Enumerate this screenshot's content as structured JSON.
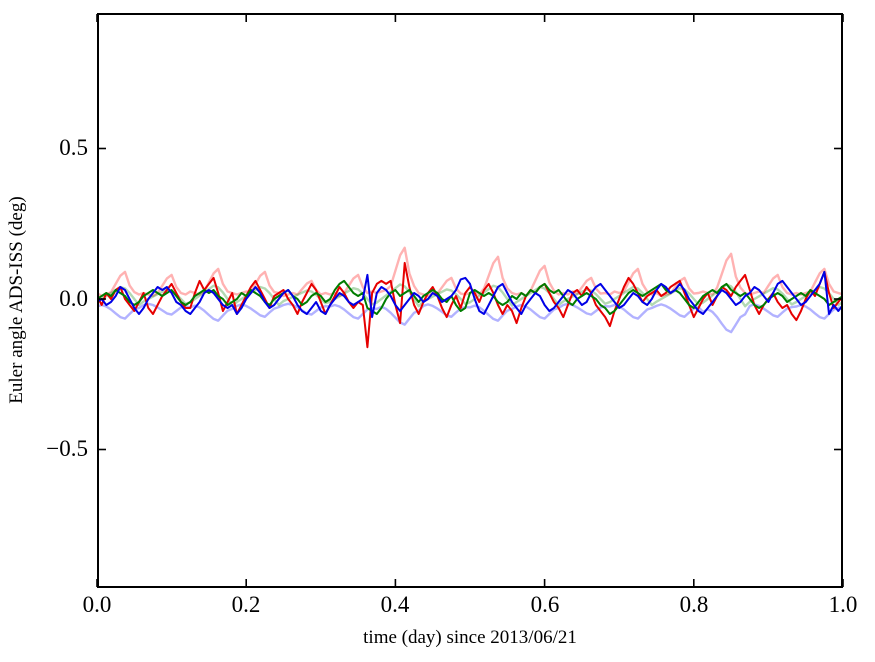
{
  "chart_data": {
    "type": "line",
    "title": "",
    "xlabel": "time (day) since 2013/06/21",
    "ylabel": "Euler angle ADS-ISS (deg)",
    "xlim": [
      0.0,
      1.0
    ],
    "ylim": [
      -0.96,
      0.95
    ],
    "grid": false,
    "legend": "none",
    "axis_color": "#000000",
    "background_color": "#ffffff",
    "x_ticks": [
      "0.0",
      "0.2",
      "0.4",
      "0.6",
      "0.8",
      "1.0"
    ],
    "x_tick_values": [
      0.0,
      0.2,
      0.4,
      0.6,
      0.8,
      1.0
    ],
    "y_ticks": [
      "0.5",
      "0.0",
      "−0.5"
    ],
    "y_tick_values": [
      0.5,
      0.0,
      -0.5
    ],
    "x_start": 0,
    "x_step": 0.00625,
    "series": [
      {
        "name": "red-faint-line",
        "color": "rgba(255,0,0,0.30)",
        "width": 2.4,
        "values": [
          0.02,
          0.01,
          0.015,
          0.023,
          0.05,
          0.077,
          0.09,
          0.045,
          0.023,
          0.015,
          0.02,
          0.015,
          0.01,
          0.02,
          0.044,
          0.068,
          0.08,
          0.04,
          0.02,
          0.015,
          0.025,
          0.02,
          0.015,
          0.025,
          0.055,
          0.085,
          0.1,
          0.05,
          0.025,
          0.02,
          0.015,
          0.02,
          0.025,
          0.023,
          0.05,
          0.077,
          0.09,
          0.045,
          0.023,
          0.02,
          0.01,
          0.015,
          0.02,
          0.015,
          0.033,
          0.051,
          0.06,
          0.03,
          0.015,
          0.02,
          0.015,
          0.02,
          0.01,
          0.02,
          0.044,
          0.068,
          0.08,
          0.04,
          0.02,
          0.025,
          0.02,
          0.025,
          0.03,
          0.043,
          0.094,
          0.145,
          0.17,
          0.085,
          0.043,
          0.02,
          0.015,
          0.01,
          0.02,
          0.018,
          0.039,
          0.06,
          0.07,
          0.035,
          0.018,
          0.015,
          0.02,
          0.025,
          0.015,
          0.035,
          0.077,
          0.119,
          0.14,
          0.07,
          0.035,
          0.02,
          0.015,
          0.02,
          0.01,
          0.028,
          0.061,
          0.094,
          0.11,
          0.055,
          0.028,
          0.015,
          0.02,
          0.015,
          0.025,
          0.018,
          0.039,
          0.06,
          0.07,
          0.035,
          0.018,
          0.02,
          0.015,
          0.025,
          0.02,
          0.025,
          0.055,
          0.085,
          0.1,
          0.05,
          0.025,
          0.015,
          0.02,
          0.01,
          0.015,
          0.018,
          0.039,
          0.06,
          0.07,
          0.035,
          0.018,
          0.02,
          0.025,
          0.02,
          0.015,
          0.038,
          0.083,
          0.128,
          0.15,
          0.075,
          0.038,
          0.02,
          0.015,
          0.02,
          0.025,
          0.02,
          0.044,
          0.068,
          0.08,
          0.04,
          0.02,
          0.015,
          0.02,
          0.015,
          0.02,
          0.025,
          0.055,
          0.085,
          0.1,
          0.05,
          0.025,
          0.02,
          0.015
        ]
      },
      {
        "name": "green-faint-line",
        "color": "rgba(0,128,0,0.30)",
        "width": 2.4,
        "values": [
          -0.01,
          0,
          0.01,
          0.02,
          0.03,
          0.04,
          0.035,
          0.02,
          0,
          -0.02,
          -0.008,
          0,
          0.008,
          0.016,
          0.024,
          0.032,
          0.028,
          0.016,
          0,
          -0.016,
          -0.011,
          0,
          0.011,
          0.022,
          0.033,
          0.044,
          0.039,
          0.022,
          0,
          -0.022,
          -0.01,
          0,
          0.01,
          0.02,
          0.03,
          0.04,
          0.035,
          0.02,
          0,
          -0.02,
          -0.007,
          0,
          0.007,
          0.014,
          0.021,
          0.028,
          0.025,
          0.014,
          0,
          -0.014,
          -0.009,
          0,
          0.009,
          0.018,
          0.027,
          0.036,
          0.032,
          0.018,
          0,
          -0.018,
          -0.012,
          0,
          0.012,
          0.024,
          0.036,
          0.048,
          0.042,
          0.024,
          0,
          -0.024,
          -0.008,
          0,
          0.008,
          0.016,
          0.024,
          0.032,
          0.028,
          0.016,
          0,
          -0.016,
          -0.011,
          0,
          0.011,
          0.022,
          0.033,
          0.044,
          0.039,
          0.022,
          0,
          -0.022,
          -0.01,
          0,
          0.01,
          0.02,
          0.03,
          0.04,
          0.035,
          0.02,
          0,
          -0.02,
          -0.008,
          0,
          0.008,
          0.016,
          0.024,
          0.032,
          0.028,
          0.016,
          0,
          -0.016,
          -0.01,
          0,
          0.01,
          0.02,
          0.03,
          0.04,
          0.035,
          0.02,
          0,
          -0.02,
          -0.009,
          0,
          0.009,
          0.018,
          0.027,
          0.036,
          0.032,
          0.018,
          0,
          -0.018,
          -0.012,
          0,
          0.012,
          0.024,
          0.036,
          0.048,
          0.042,
          0.024,
          0,
          -0.024,
          -0.009,
          0,
          0.009,
          0.018,
          0.027,
          0.036,
          0.032,
          0.018,
          0,
          -0.018,
          -0.01,
          0,
          0.01,
          0.02,
          0.03,
          0.04,
          0.035,
          0.02,
          0,
          -0.02,
          -0.01
        ]
      },
      {
        "name": "blue-faint-line",
        "color": "rgba(0,0,255,0.30)",
        "width": 2.4,
        "values": [
          -0.025,
          -0.02,
          -0.025,
          -0.035,
          -0.048,
          -0.06,
          -0.065,
          -0.05,
          -0.035,
          -0.03,
          -0.02,
          -0.016,
          -0.02,
          -0.028,
          -0.038,
          -0.048,
          -0.052,
          -0.04,
          -0.028,
          -0.024,
          -0.028,
          -0.022,
          -0.028,
          -0.039,
          -0.053,
          -0.066,
          -0.072,
          -0.055,
          -0.039,
          -0.033,
          -0.023,
          -0.018,
          -0.023,
          -0.032,
          -0.043,
          -0.054,
          -0.059,
          -0.045,
          -0.032,
          -0.027,
          -0.02,
          -0.016,
          -0.02,
          -0.028,
          -0.038,
          -0.048,
          -0.052,
          -0.04,
          -0.028,
          -0.024,
          -0.025,
          -0.02,
          -0.025,
          -0.035,
          -0.048,
          -0.06,
          -0.065,
          -0.05,
          -0.035,
          -0.03,
          -0.033,
          -0.026,
          -0.033,
          -0.046,
          -0.062,
          -0.078,
          -0.085,
          -0.065,
          -0.046,
          -0.039,
          -0.023,
          -0.018,
          -0.023,
          -0.032,
          -0.043,
          -0.054,
          -0.059,
          -0.045,
          -0.032,
          -0.027,
          -0.028,
          -0.022,
          -0.028,
          -0.039,
          -0.053,
          -0.066,
          -0.072,
          -0.055,
          -0.039,
          -0.033,
          -0.025,
          -0.02,
          -0.025,
          -0.035,
          -0.048,
          -0.06,
          -0.065,
          -0.05,
          -0.035,
          -0.03,
          -0.02,
          -0.016,
          -0.02,
          -0.028,
          -0.038,
          -0.048,
          -0.052,
          -0.04,
          -0.028,
          -0.024,
          -0.025,
          -0.02,
          -0.025,
          -0.035,
          -0.048,
          -0.06,
          -0.065,
          -0.05,
          -0.035,
          -0.03,
          -0.023,
          -0.018,
          -0.023,
          -0.032,
          -0.043,
          -0.054,
          -0.059,
          -0.045,
          -0.032,
          -0.027,
          -0.043,
          -0.034,
          -0.043,
          -0.06,
          -0.082,
          -0.102,
          -0.11,
          -0.085,
          -0.06,
          -0.051,
          -0.023,
          -0.018,
          -0.023,
          -0.032,
          -0.043,
          -0.054,
          -0.059,
          -0.045,
          -0.032,
          -0.027,
          -0.025,
          -0.02,
          -0.025,
          -0.035,
          -0.048,
          -0.06,
          -0.065,
          -0.05,
          -0.035,
          -0.03,
          -0.025
        ]
      },
      {
        "name": "red-line",
        "color": "#e60000",
        "width": 2,
        "values": [
          0.01,
          -0.02,
          0.02,
          0,
          0.03,
          0.04,
          0,
          -0.02,
          -0.04,
          -0.01,
          0.02,
          -0.03,
          -0.05,
          -0.02,
          0.01,
          0.03,
          0.05,
          0.02,
          -0.01,
          -0.03,
          -0.03,
          0.02,
          0.06,
          0.03,
          0.05,
          0.07,
          0.02,
          -0.04,
          -0.01,
          0.02,
          -0.05,
          -0.02,
          0.01,
          0.04,
          0.06,
          0.03,
          0,
          -0.03,
          0.01,
          0.02,
          0.03,
          0,
          -0.02,
          -0.05,
          -0.01,
          0.02,
          0.05,
          0.03,
          -0.01,
          -0.05,
          -0.02,
          0.01,
          0.04,
          0.02,
          -0.01,
          -0.03,
          -0.01,
          -0.02,
          -0.16,
          0.02,
          0.05,
          0.06,
          0.05,
          0.06,
          -0.02,
          -0.08,
          0.12,
          0.04,
          -0.02,
          -0.05,
          -0.01,
          0.02,
          0.04,
          0.01,
          -0.03,
          -0.06,
          -0.02,
          0.01,
          -0.03,
          0.02,
          0.04,
          0.02,
          -0.01,
          0.03,
          0.05,
          0.02,
          -0.02,
          -0.05,
          -0.02,
          -0.04,
          -0.08,
          -0.03,
          0.01,
          0.03,
          0.02,
          0.04,
          0.05,
          0.02,
          -0.01,
          -0.03,
          -0.06,
          -0.02,
          0.02,
          0.03,
          0.01,
          0.04,
          0.02,
          -0.02,
          -0.04,
          -0.06,
          -0.09,
          -0.04,
          0,
          0.04,
          0.07,
          0.05,
          0.02,
          -0.01,
          0.01,
          0.02,
          0.03,
          0.01,
          0.02,
          0.04,
          0.05,
          0.06,
          0.02,
          -0.02,
          -0.06,
          -0.03,
          0,
          0.02,
          -0.02,
          0.01,
          0.04,
          0.03,
          0.01,
          0.04,
          0.06,
          0.08,
          0.03,
          -0.02,
          -0.05,
          -0.02,
          0,
          0.02,
          -0.01,
          -0.03,
          -0.02,
          -0.05,
          -0.07,
          -0.04,
          0,
          0.03,
          0.01,
          0.05,
          0.09,
          0.02,
          -0.03,
          -0.01,
          0.01
        ]
      },
      {
        "name": "green-line",
        "color": "#007d00",
        "width": 2,
        "values": [
          0,
          0.01,
          0.02,
          0.01,
          0.03,
          0.02,
          0.01,
          -0.01,
          -0.02,
          -0.01,
          0.01,
          0.02,
          0.03,
          0.02,
          0.01,
          0.02,
          0.03,
          0.01,
          -0.01,
          -0.02,
          -0.01,
          0.01,
          0.02,
          0.03,
          0.02,
          0.03,
          0.01,
          0,
          -0.02,
          -0.01,
          0,
          0.02,
          0.01,
          0.03,
          0.02,
          0.01,
          -0.01,
          -0.02,
          0,
          0.01,
          0.02,
          0.03,
          0.01,
          0,
          -0.02,
          -0.01,
          0.01,
          0.02,
          0.01,
          -0.01,
          0,
          0.03,
          0.05,
          0.06,
          0.04,
          0.02,
          0.01,
          0.02,
          -0.03,
          -0.04,
          -0.05,
          -0.03,
          0,
          0.02,
          0.03,
          0.01,
          0.02,
          0.03,
          0.01,
          -0.01,
          0.01,
          0.02,
          0.03,
          0.02,
          0,
          -0.01,
          0.01,
          -0.02,
          -0.04,
          -0.03,
          0.02,
          0.03,
          0.02,
          0.01,
          0.02,
          0.01,
          -0.01,
          -0.02,
          -0.01,
          0.01,
          0,
          0.02,
          0.01,
          0.03,
          0.02,
          0.04,
          0.05,
          0.03,
          0.02,
          0.03,
          0.01,
          -0.01,
          -0.02,
          0,
          0.01,
          0.02,
          0.01,
          0,
          -0.02,
          -0.03,
          -0.05,
          -0.04,
          -0.02,
          0,
          0.02,
          0.03,
          0.02,
          0.01,
          0.02,
          0.03,
          0.04,
          0.05,
          0.03,
          0.02,
          0.03,
          0.02,
          0,
          -0.02,
          -0.03,
          -0.01,
          0.01,
          0.02,
          0.03,
          0.02,
          0.04,
          0.05,
          0.03,
          0.02,
          0.01,
          0.02,
          0,
          -0.02,
          -0.03,
          -0.02,
          0,
          0.01,
          0.02,
          0.01,
          -0.01,
          0,
          0.01,
          0.02,
          0.01,
          0.03,
          0.02,
          0.01,
          0,
          -0.02,
          -0.01,
          0,
          0.01
        ]
      },
      {
        "name": "blue-line",
        "color": "#0000e6",
        "width": 2,
        "values": [
          -0.01,
          0,
          -0.02,
          -0.01,
          0.01,
          0.04,
          0.03,
          0,
          -0.03,
          -0.05,
          -0.03,
          0,
          0.02,
          0.04,
          0.03,
          0.04,
          0.02,
          -0.01,
          -0.02,
          -0.04,
          -0.05,
          -0.03,
          -0.01,
          0.02,
          0.03,
          0.02,
          0,
          -0.02,
          -0.03,
          -0.02,
          -0.05,
          -0.03,
          0,
          0.02,
          0.04,
          0.02,
          -0.01,
          -0.03,
          -0.02,
          0,
          0.02,
          0.03,
          0.01,
          -0.02,
          -0.04,
          -0.05,
          -0.03,
          -0.01,
          -0.04,
          -0.05,
          -0.02,
          0,
          0.02,
          0.01,
          -0.01,
          -0.02,
          -0.01,
          0,
          0.08,
          -0.06,
          0.02,
          0.04,
          0.03,
          0.01,
          -0.02,
          -0.04,
          -0.02,
          0,
          0.02,
          0.01,
          -0.01,
          0,
          0.02,
          0.01,
          -0.01,
          0,
          0.01,
          0.03,
          0.065,
          0.07,
          0.05,
          0,
          -0.04,
          -0.05,
          -0.02,
          0.01,
          0.04,
          0.05,
          0.02,
          -0.01,
          -0.03,
          -0.05,
          -0.02,
          0,
          0.02,
          0.01,
          -0.02,
          -0.04,
          -0.03,
          -0.01,
          0.01,
          0.03,
          0.02,
          0,
          -0.02,
          -0.01,
          0.02,
          0.04,
          0.05,
          0.03,
          0.01,
          -0.01,
          -0.03,
          -0.02,
          0,
          0.02,
          0.01,
          -0.01,
          -0.02,
          0,
          0.03,
          0.05,
          0.04,
          0.02,
          0.03,
          0.05,
          0.03,
          0,
          -0.02,
          -0.04,
          -0.05,
          -0.03,
          -0.01,
          0.01,
          0.03,
          0.02,
          0,
          -0.02,
          -0.01,
          0.01,
          0.02,
          0.04,
          0.03,
          0.01,
          -0.01,
          0.02,
          0.05,
          0.06,
          0.04,
          0.02,
          0,
          -0.02,
          -0.01,
          0.01,
          0.03,
          0.05,
          0.09,
          -0.05,
          -0.02,
          -0.04,
          -0.02
        ]
      }
    ]
  }
}
